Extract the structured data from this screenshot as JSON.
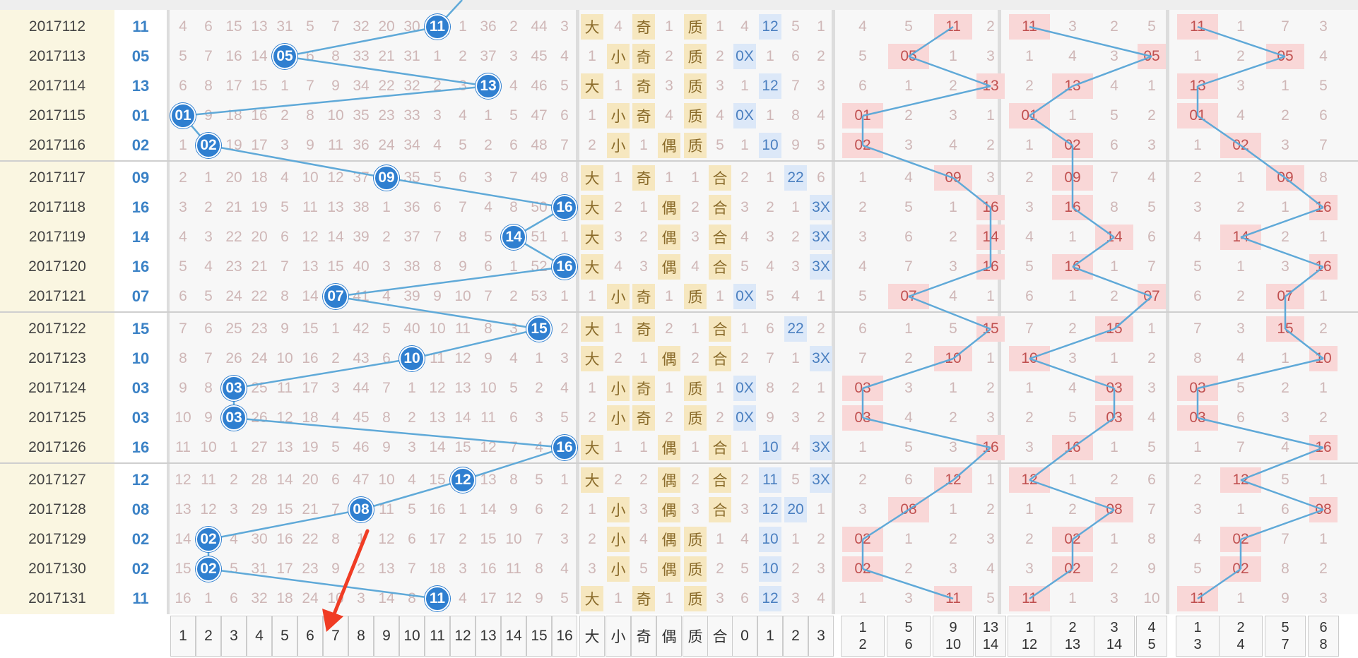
{
  "colors": {
    "circle": "#2f7fd0",
    "line": "#5fa9d8",
    "hot_bg": "#f9d7d7",
    "size_bg": "#f6e7bf",
    "route_bg": "#dce8f8",
    "period_bg": "#faf6e1",
    "stripe_bg": "#f6f6f6",
    "arrow": "#f03c24"
  },
  "rows": [
    {
      "period": "2017112",
      "num": "11",
      "pos": 11,
      "miss": [
        "4",
        "6",
        "15",
        "13",
        "31",
        "5",
        "7",
        "32",
        "20",
        "30",
        "",
        "1",
        "36",
        "2",
        "44",
        "3"
      ],
      "size": [
        "大",
        "4"
      ],
      "parity": [
        "奇",
        "1"
      ],
      "prime": [
        "质",
        "1"
      ],
      "route": [
        "4",
        "12",
        "5",
        "1"
      ],
      "a": [
        "4",
        "5",
        "11",
        "2"
      ],
      "b": [
        "11",
        "3",
        "2",
        "5"
      ],
      "c": [
        "11",
        "1",
        "7",
        "3"
      ]
    },
    {
      "period": "2017113",
      "num": "05",
      "pos": 5,
      "miss": [
        "5",
        "7",
        "16",
        "14",
        "",
        "6",
        "8",
        "33",
        "21",
        "31",
        "1",
        "2",
        "37",
        "3",
        "45",
        "4"
      ],
      "size": [
        "1",
        "小"
      ],
      "parity": [
        "奇",
        "2"
      ],
      "prime": [
        "质",
        "2"
      ],
      "route": [
        "0X",
        "1",
        "6",
        "2"
      ],
      "a": [
        "5",
        "05",
        "1",
        "3"
      ],
      "b": [
        "1",
        "4",
        "3",
        "05"
      ],
      "c": [
        "1",
        "2",
        "05",
        "4"
      ]
    },
    {
      "period": "2017114",
      "num": "13",
      "pos": 13,
      "miss": [
        "6",
        "8",
        "17",
        "15",
        "1",
        "7",
        "9",
        "34",
        "22",
        "32",
        "2",
        "3",
        "",
        "4",
        "46",
        "5"
      ],
      "size": [
        "大",
        "1"
      ],
      "parity": [
        "奇",
        "3"
      ],
      "prime": [
        "质",
        "3"
      ],
      "route": [
        "1",
        "12",
        "7",
        "3"
      ],
      "a": [
        "6",
        "1",
        "2",
        "13"
      ],
      "b": [
        "2",
        "13",
        "4",
        "1"
      ],
      "c": [
        "13",
        "3",
        "1",
        "5"
      ]
    },
    {
      "period": "2017115",
      "num": "01",
      "pos": 1,
      "miss": [
        "",
        "9",
        "18",
        "16",
        "2",
        "8",
        "10",
        "35",
        "23",
        "33",
        "3",
        "4",
        "1",
        "5",
        "47",
        "6"
      ],
      "size": [
        "1",
        "小"
      ],
      "parity": [
        "奇",
        "4"
      ],
      "prime": [
        "质",
        "4"
      ],
      "route": [
        "0X",
        "1",
        "8",
        "4"
      ],
      "a": [
        "01",
        "2",
        "3",
        "1"
      ],
      "b": [
        "01",
        "1",
        "5",
        "2"
      ],
      "c": [
        "01",
        "4",
        "2",
        "6"
      ]
    },
    {
      "period": "2017116",
      "num": "02",
      "pos": 2,
      "miss": [
        "1",
        "",
        "19",
        "17",
        "3",
        "9",
        "11",
        "36",
        "24",
        "34",
        "4",
        "5",
        "2",
        "6",
        "48",
        "7"
      ],
      "size": [
        "2",
        "小"
      ],
      "parity": [
        "1",
        "偶"
      ],
      "prime": [
        "质",
        "5"
      ],
      "route": [
        "1",
        "10",
        "9",
        "5"
      ],
      "a": [
        "02",
        "3",
        "4",
        "2"
      ],
      "b": [
        "1",
        "02",
        "6",
        "3"
      ],
      "c": [
        "1",
        "02",
        "3",
        "7"
      ]
    },
    {
      "period": "2017117",
      "num": "09",
      "pos": 9,
      "miss": [
        "2",
        "1",
        "20",
        "18",
        "4",
        "10",
        "12",
        "37",
        "",
        "35",
        "5",
        "6",
        "3",
        "7",
        "49",
        "8"
      ],
      "size": [
        "大",
        "1"
      ],
      "parity": [
        "奇",
        "1"
      ],
      "prime": [
        "1",
        "合"
      ],
      "route": [
        "2",
        "1",
        "22",
        "6"
      ],
      "a": [
        "1",
        "4",
        "09",
        "3"
      ],
      "b": [
        "2",
        "09",
        "7",
        "4"
      ],
      "c": [
        "2",
        "1",
        "09",
        "8"
      ]
    },
    {
      "period": "2017118",
      "num": "16",
      "pos": 16,
      "miss": [
        "3",
        "2",
        "21",
        "19",
        "5",
        "11",
        "13",
        "38",
        "1",
        "36",
        "6",
        "7",
        "4",
        "8",
        "50",
        ""
      ],
      "size": [
        "大",
        "2"
      ],
      "parity": [
        "1",
        "偶"
      ],
      "prime": [
        "2",
        "合"
      ],
      "route": [
        "3",
        "2",
        "1",
        "3X"
      ],
      "a": [
        "2",
        "5",
        "1",
        "16"
      ],
      "b": [
        "3",
        "16",
        "8",
        "5"
      ],
      "c": [
        "3",
        "2",
        "1",
        "16"
      ]
    },
    {
      "period": "2017119",
      "num": "14",
      "pos": 14,
      "miss": [
        "4",
        "3",
        "22",
        "20",
        "6",
        "12",
        "14",
        "39",
        "2",
        "37",
        "7",
        "8",
        "5",
        "",
        "51",
        "1"
      ],
      "size": [
        "大",
        "3"
      ],
      "parity": [
        "2",
        "偶"
      ],
      "prime": [
        "3",
        "合"
      ],
      "route": [
        "4",
        "3",
        "2",
        "3X"
      ],
      "a": [
        "3",
        "6",
        "2",
        "14"
      ],
      "b": [
        "4",
        "1",
        "14",
        "6"
      ],
      "c": [
        "4",
        "14",
        "2",
        "1"
      ]
    },
    {
      "period": "2017120",
      "num": "16",
      "pos": 16,
      "miss": [
        "5",
        "4",
        "23",
        "21",
        "7",
        "13",
        "15",
        "40",
        "3",
        "38",
        "8",
        "9",
        "6",
        "1",
        "52",
        ""
      ],
      "size": [
        "大",
        "4"
      ],
      "parity": [
        "3",
        "偶"
      ],
      "prime": [
        "4",
        "合"
      ],
      "route": [
        "5",
        "4",
        "3",
        "3X"
      ],
      "a": [
        "4",
        "7",
        "3",
        "16"
      ],
      "b": [
        "5",
        "16",
        "1",
        "7"
      ],
      "c": [
        "5",
        "1",
        "3",
        "16"
      ]
    },
    {
      "period": "2017121",
      "num": "07",
      "pos": 7,
      "miss": [
        "6",
        "5",
        "24",
        "22",
        "8",
        "14",
        "",
        "41",
        "4",
        "39",
        "9",
        "10",
        "7",
        "2",
        "53",
        "1"
      ],
      "size": [
        "1",
        "小"
      ],
      "parity": [
        "奇",
        "1"
      ],
      "prime": [
        "质",
        "1"
      ],
      "route": [
        "0X",
        "5",
        "4",
        "1"
      ],
      "a": [
        "5",
        "07",
        "4",
        "1"
      ],
      "b": [
        "6",
        "1",
        "2",
        "07"
      ],
      "c": [
        "6",
        "2",
        "07",
        "1"
      ]
    },
    {
      "period": "2017122",
      "num": "15",
      "pos": 15,
      "miss": [
        "7",
        "6",
        "25",
        "23",
        "9",
        "15",
        "1",
        "42",
        "5",
        "40",
        "10",
        "11",
        "8",
        "3",
        "",
        "2"
      ],
      "size": [
        "大",
        "1"
      ],
      "parity": [
        "奇",
        "2"
      ],
      "prime": [
        "1",
        "合"
      ],
      "route": [
        "1",
        "6",
        "22",
        "2"
      ],
      "a": [
        "6",
        "1",
        "5",
        "15"
      ],
      "b": [
        "7",
        "2",
        "15",
        "1"
      ],
      "c": [
        "7",
        "3",
        "15",
        "2"
      ]
    },
    {
      "period": "2017123",
      "num": "10",
      "pos": 10,
      "miss": [
        "8",
        "7",
        "26",
        "24",
        "10",
        "16",
        "2",
        "43",
        "6",
        "",
        "11",
        "12",
        "9",
        "4",
        "1",
        "3"
      ],
      "size": [
        "大",
        "2"
      ],
      "parity": [
        "1",
        "偶"
      ],
      "prime": [
        "2",
        "合"
      ],
      "route": [
        "2",
        "7",
        "1",
        "3X"
      ],
      "a": [
        "7",
        "2",
        "10",
        "1"
      ],
      "b": [
        "10",
        "3",
        "1",
        "2"
      ],
      "c": [
        "8",
        "4",
        "1",
        "10"
      ]
    },
    {
      "period": "2017124",
      "num": "03",
      "pos": 3,
      "miss": [
        "9",
        "8",
        "",
        "25",
        "11",
        "17",
        "3",
        "44",
        "7",
        "1",
        "12",
        "13",
        "10",
        "5",
        "2",
        "4"
      ],
      "size": [
        "1",
        "小"
      ],
      "parity": [
        "奇",
        "1"
      ],
      "prime": [
        "质",
        "1"
      ],
      "route": [
        "0X",
        "8",
        "2",
        "1"
      ],
      "a": [
        "03",
        "3",
        "1",
        "2"
      ],
      "b": [
        "1",
        "4",
        "03",
        "3"
      ],
      "c": [
        "03",
        "5",
        "2",
        "1"
      ]
    },
    {
      "period": "2017125",
      "num": "03",
      "pos": 3,
      "miss": [
        "10",
        "9",
        "",
        "26",
        "12",
        "18",
        "4",
        "45",
        "8",
        "2",
        "13",
        "14",
        "11",
        "6",
        "3",
        "5"
      ],
      "size": [
        "2",
        "小"
      ],
      "parity": [
        "奇",
        "2"
      ],
      "prime": [
        "质",
        "2"
      ],
      "route": [
        "0X",
        "9",
        "3",
        "2"
      ],
      "a": [
        "03",
        "4",
        "2",
        "3"
      ],
      "b": [
        "2",
        "5",
        "03",
        "4"
      ],
      "c": [
        "03",
        "6",
        "3",
        "2"
      ]
    },
    {
      "period": "2017126",
      "num": "16",
      "pos": 16,
      "miss": [
        "11",
        "10",
        "1",
        "27",
        "13",
        "19",
        "5",
        "46",
        "9",
        "3",
        "14",
        "15",
        "12",
        "7",
        "4",
        ""
      ],
      "size": [
        "大",
        "1"
      ],
      "parity": [
        "1",
        "偶"
      ],
      "prime": [
        "1",
        "合"
      ],
      "route": [
        "1",
        "10",
        "4",
        "3X"
      ],
      "a": [
        "1",
        "5",
        "3",
        "16"
      ],
      "b": [
        "3",
        "16",
        "1",
        "5"
      ],
      "c": [
        "1",
        "7",
        "4",
        "16"
      ]
    },
    {
      "period": "2017127",
      "num": "12",
      "pos": 12,
      "miss": [
        "12",
        "11",
        "2",
        "28",
        "14",
        "20",
        "6",
        "47",
        "10",
        "4",
        "15",
        "",
        "13",
        "8",
        "5",
        "1"
      ],
      "size": [
        "大",
        "2"
      ],
      "parity": [
        "2",
        "偶"
      ],
      "prime": [
        "2",
        "合"
      ],
      "route": [
        "2",
        "11",
        "5",
        "3X"
      ],
      "a": [
        "2",
        "6",
        "12",
        "1"
      ],
      "b": [
        "12",
        "1",
        "2",
        "6"
      ],
      "c": [
        "2",
        "12",
        "5",
        "1"
      ]
    },
    {
      "period": "2017128",
      "num": "08",
      "pos": 8,
      "miss": [
        "13",
        "12",
        "3",
        "29",
        "15",
        "21",
        "7",
        "",
        "11",
        "5",
        "16",
        "1",
        "14",
        "9",
        "6",
        "2"
      ],
      "size": [
        "1",
        "小"
      ],
      "parity": [
        "3",
        "偶"
      ],
      "prime": [
        "3",
        "合"
      ],
      "route": [
        "3",
        "12",
        "20",
        "1"
      ],
      "a": [
        "3",
        "08",
        "1",
        "2"
      ],
      "b": [
        "1",
        "2",
        "08",
        "7"
      ],
      "c": [
        "3",
        "1",
        "6",
        "08"
      ]
    },
    {
      "period": "2017129",
      "num": "02",
      "pos": 2,
      "miss": [
        "14",
        "",
        "4",
        "30",
        "16",
        "22",
        "8",
        "1",
        "12",
        "6",
        "17",
        "2",
        "15",
        "10",
        "7",
        "3"
      ],
      "size": [
        "2",
        "小"
      ],
      "parity": [
        "4",
        "偶"
      ],
      "prime": [
        "质",
        "1"
      ],
      "route": [
        "4",
        "10",
        "1",
        "2"
      ],
      "a": [
        "02",
        "1",
        "2",
        "3"
      ],
      "b": [
        "2",
        "02",
        "1",
        "8"
      ],
      "c": [
        "4",
        "02",
        "7",
        "1"
      ]
    },
    {
      "period": "2017130",
      "num": "02",
      "pos": 2,
      "miss": [
        "15",
        "",
        "5",
        "31",
        "17",
        "23",
        "9",
        "2",
        "13",
        "7",
        "18",
        "3",
        "16",
        "11",
        "8",
        "4"
      ],
      "size": [
        "3",
        "小"
      ],
      "parity": [
        "5",
        "偶"
      ],
      "prime": [
        "质",
        "2"
      ],
      "route": [
        "5",
        "10",
        "2",
        "3"
      ],
      "a": [
        "02",
        "2",
        "3",
        "4"
      ],
      "b": [
        "3",
        "02",
        "2",
        "9"
      ],
      "c": [
        "5",
        "02",
        "8",
        "2"
      ]
    },
    {
      "period": "2017131",
      "num": "11",
      "pos": 11,
      "miss": [
        "16",
        "1",
        "6",
        "32",
        "18",
        "24",
        "10",
        "3",
        "14",
        "8",
        "",
        "4",
        "17",
        "12",
        "9",
        "5"
      ],
      "size": [
        "大",
        "1"
      ],
      "parity": [
        "奇",
        "1"
      ],
      "prime": [
        "质",
        "3"
      ],
      "route": [
        "6",
        "12",
        "3",
        "4"
      ],
      "a": [
        "1",
        "3",
        "11",
        "5"
      ],
      "b": [
        "11",
        "1",
        "3",
        "10"
      ],
      "c": [
        "11",
        "1",
        "9",
        "3"
      ]
    }
  ],
  "footer": {
    "numbers": [
      "1",
      "2",
      "3",
      "4",
      "5",
      "6",
      "7",
      "8",
      "9",
      "10",
      "11",
      "12",
      "13",
      "14",
      "15",
      "16"
    ],
    "attrs": [
      "大",
      "小",
      "奇",
      "偶",
      "质",
      "合"
    ],
    "routes": [
      "0",
      "1",
      "2",
      "3"
    ],
    "groupA": [
      [
        "1",
        "2"
      ],
      [
        "5",
        "6"
      ],
      [
        "9",
        "10"
      ],
      [
        "13",
        "14"
      ]
    ],
    "groupB": [
      [
        "1",
        "12"
      ],
      [
        "2",
        "13"
      ],
      [
        "3",
        "14"
      ],
      [
        "4",
        "5"
      ]
    ],
    "groupC": [
      [
        "1",
        "3"
      ],
      [
        "2",
        "4"
      ],
      [
        "5",
        "7"
      ],
      [
        "6",
        "8"
      ]
    ]
  }
}
